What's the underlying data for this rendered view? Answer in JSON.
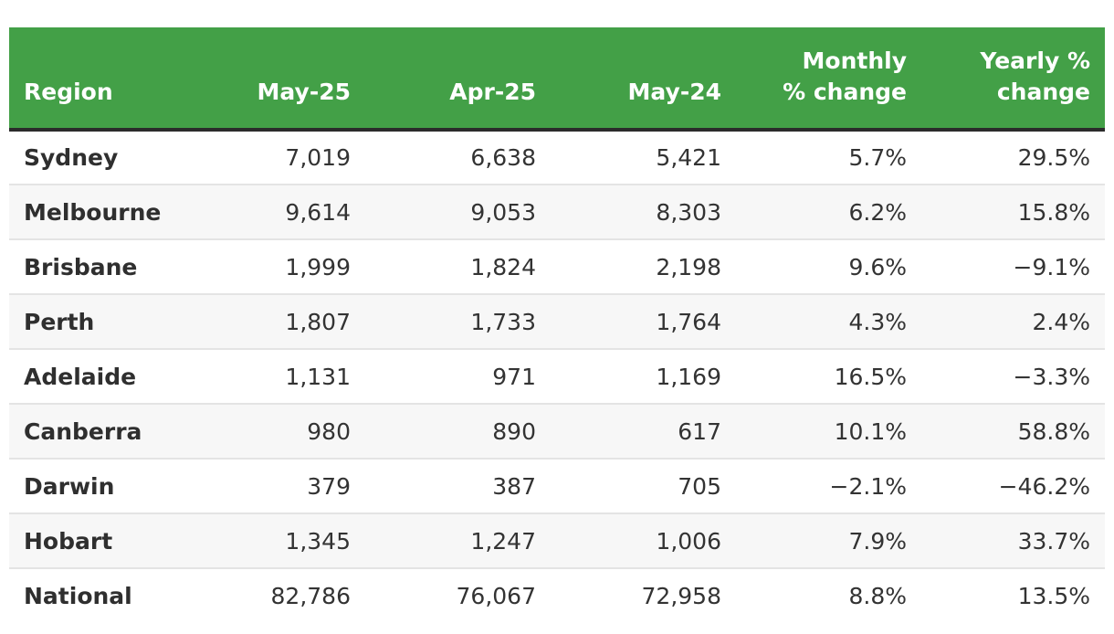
{
  "table": {
    "header_color": "#43a047",
    "columns": {
      "region": "Region",
      "may25": "May-25",
      "apr25": "Apr-25",
      "may24": "May-24",
      "monthly_line1": "Monthly",
      "monthly_line2": "% change",
      "yearly_line1": "Yearly %",
      "yearly_line2": "change"
    },
    "rows": [
      {
        "region": "Sydney",
        "may25": "7,019",
        "apr25": "6,638",
        "may24": "5,421",
        "monthly": "5.7%",
        "yearly": "29.5%"
      },
      {
        "region": "Melbourne",
        "may25": "9,614",
        "apr25": "9,053",
        "may24": "8,303",
        "monthly": "6.2%",
        "yearly": "15.8%"
      },
      {
        "region": "Brisbane",
        "may25": "1,999",
        "apr25": "1,824",
        "may24": "2,198",
        "monthly": "9.6%",
        "yearly": "−9.1%"
      },
      {
        "region": "Perth",
        "may25": "1,807",
        "apr25": "1,733",
        "may24": "1,764",
        "monthly": "4.3%",
        "yearly": "2.4%"
      },
      {
        "region": "Adelaide",
        "may25": "1,131",
        "apr25": "971",
        "may24": "1,169",
        "monthly": "16.5%",
        "yearly": "−3.3%"
      },
      {
        "region": "Canberra",
        "may25": "980",
        "apr25": "890",
        "may24": "617",
        "monthly": "10.1%",
        "yearly": "58.8%"
      },
      {
        "region": "Darwin",
        "may25": "379",
        "apr25": "387",
        "may24": "705",
        "monthly": "−2.1%",
        "yearly": "−46.2%"
      },
      {
        "region": "Hobart",
        "may25": "1,345",
        "apr25": "1,247",
        "may24": "1,006",
        "monthly": "7.9%",
        "yearly": "33.7%"
      },
      {
        "region": "National",
        "may25": "82,786",
        "apr25": "76,067",
        "may24": "72,958",
        "monthly": "8.8%",
        "yearly": "13.5%"
      }
    ]
  }
}
